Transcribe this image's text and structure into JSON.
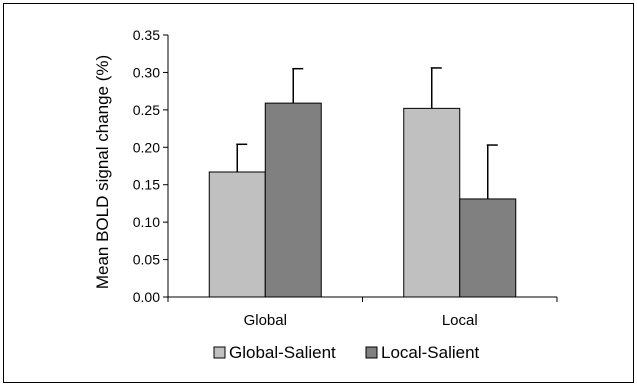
{
  "chart_data": {
    "type": "bar",
    "title": "",
    "xlabel": "",
    "ylabel": "Mean BOLD signal change (%)",
    "categories": [
      "Global",
      "Local"
    ],
    "series": [
      {
        "name": "Global-Salient",
        "color": "#c0c0c0",
        "values": [
          0.167,
          0.252
        ],
        "errors": [
          0.037,
          0.054
        ]
      },
      {
        "name": "Local-Salient",
        "color": "#808080",
        "values": [
          0.259,
          0.131
        ],
        "errors": [
          0.046,
          0.072
        ]
      }
    ],
    "ylim": [
      0,
      0.35
    ],
    "yticks": [
      "0.00",
      "0.05",
      "0.10",
      "0.15",
      "0.20",
      "0.25",
      "0.30",
      "0.35"
    ],
    "grid": false,
    "legend_position": "bottom"
  }
}
